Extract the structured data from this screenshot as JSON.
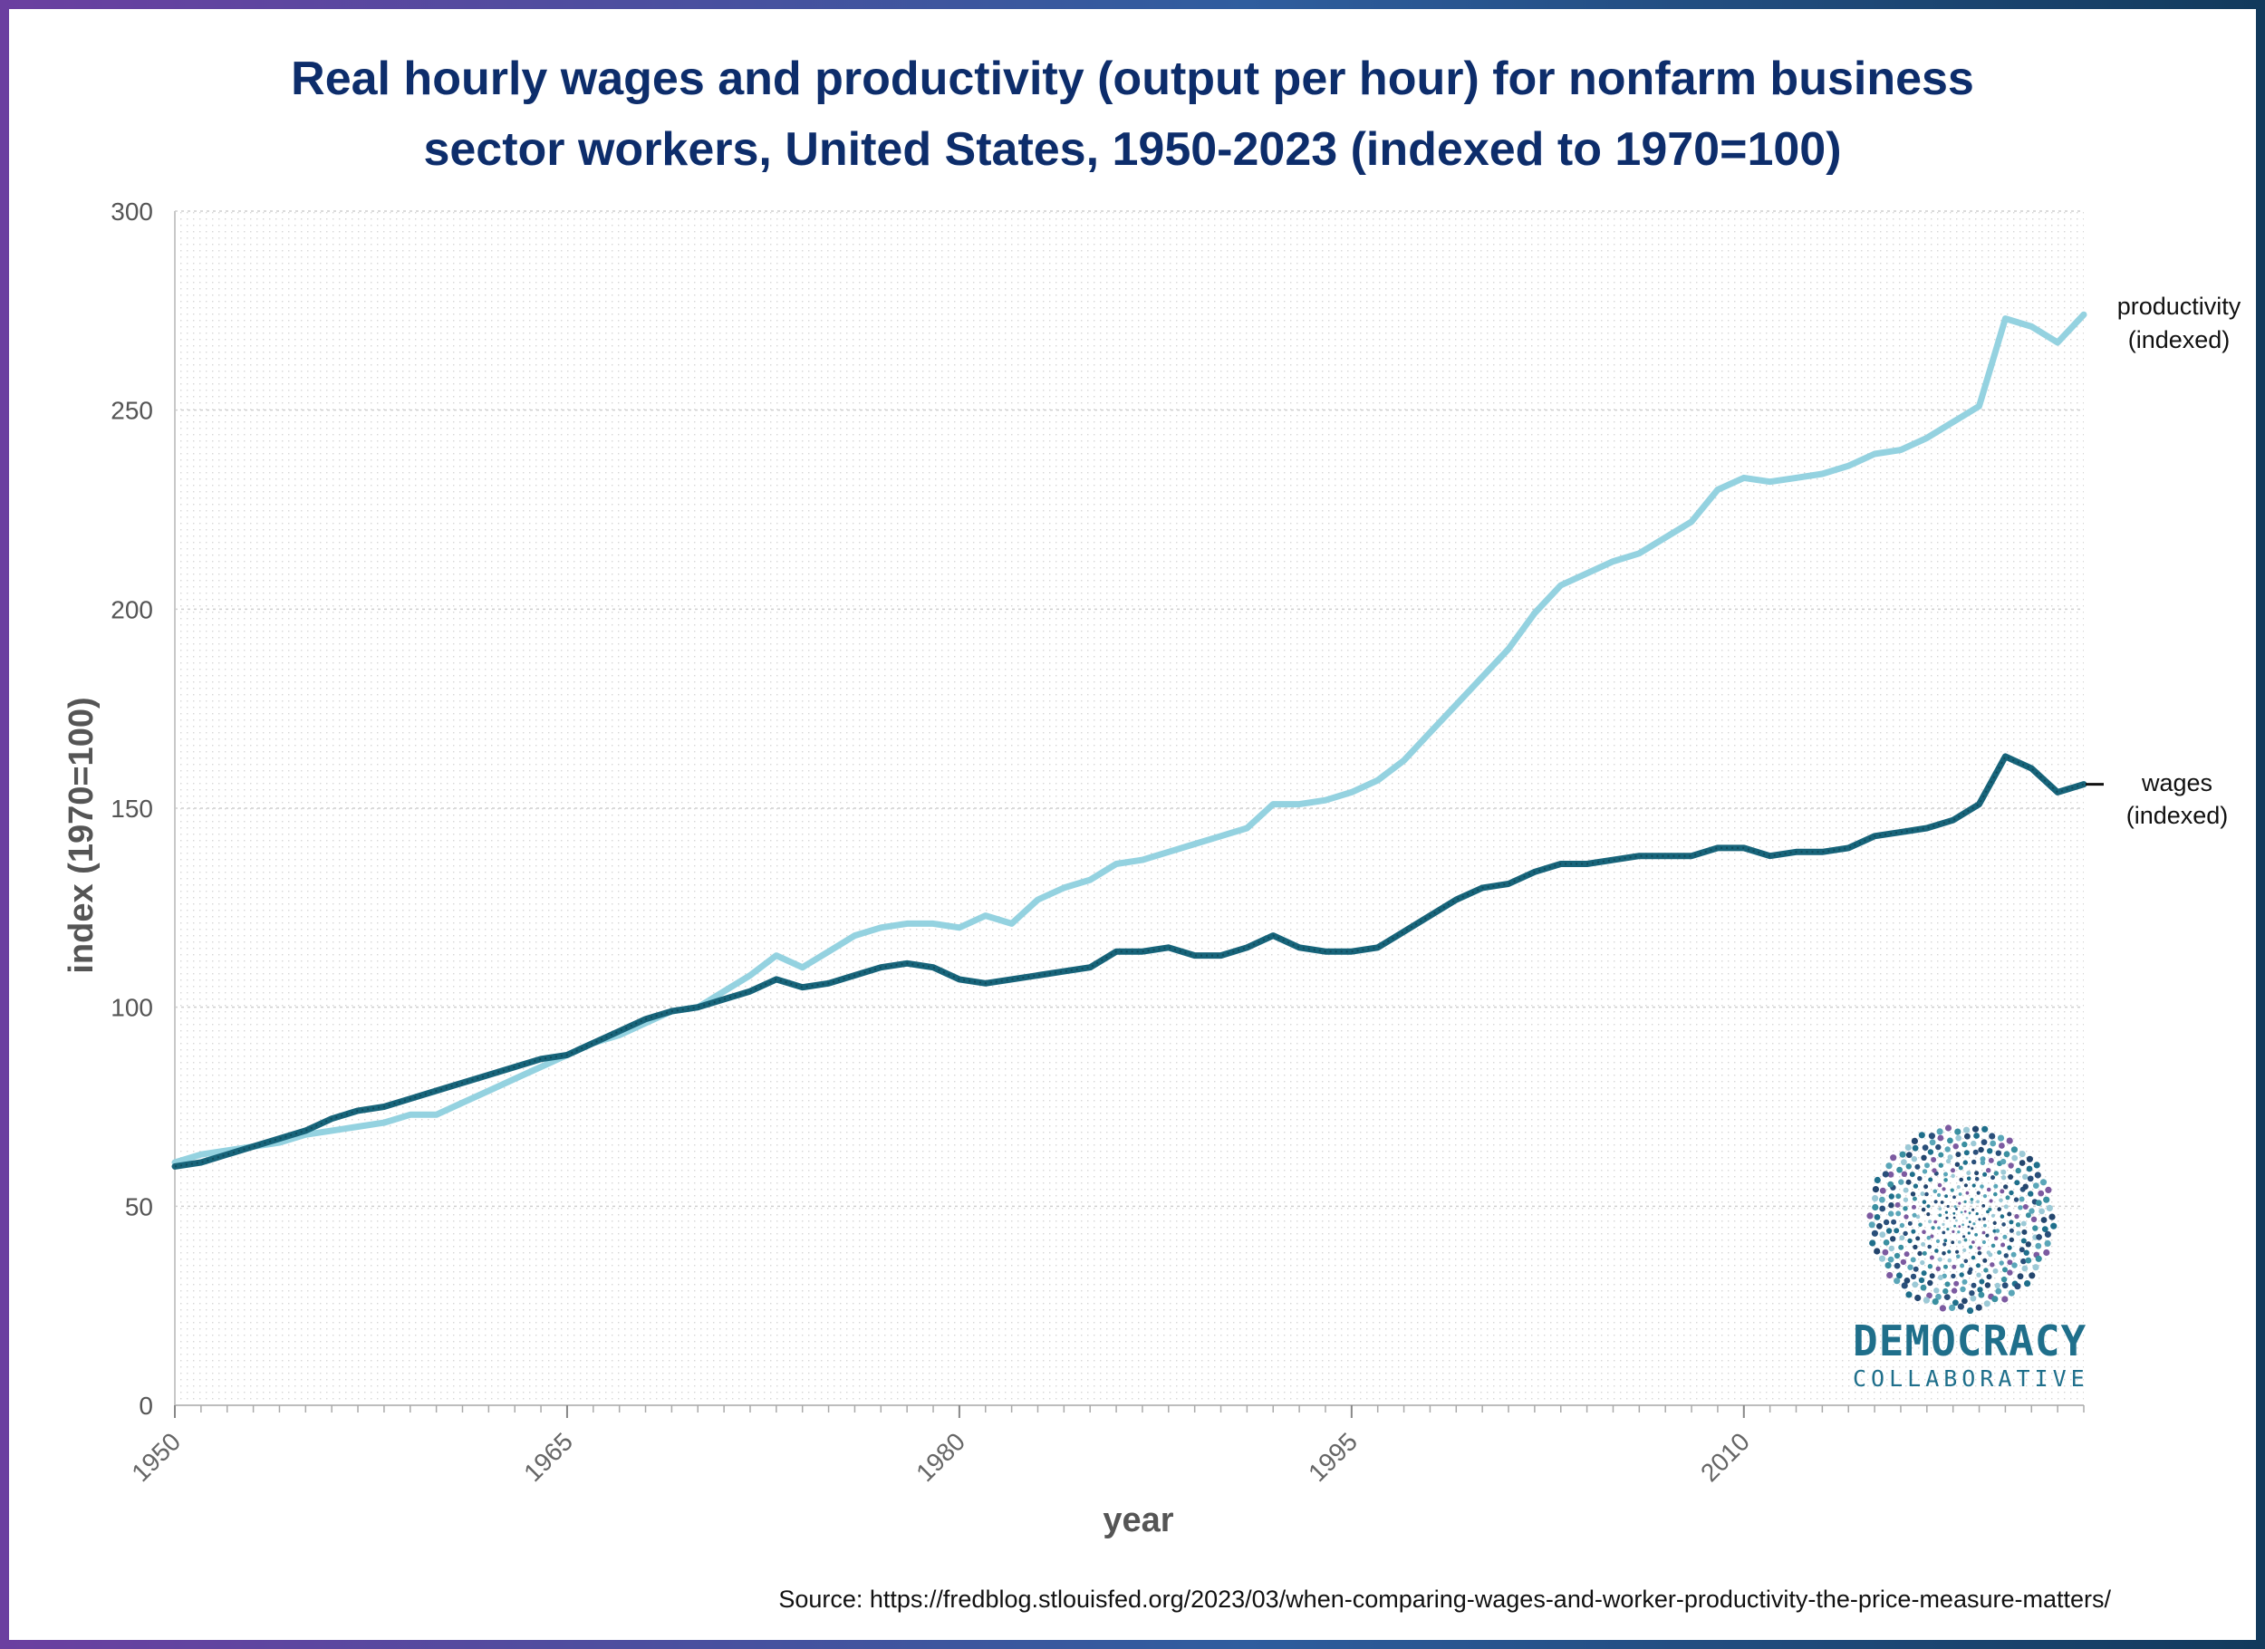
{
  "chart_data": {
    "type": "line",
    "title_lines": [
      "Real hourly wages and productivity (output per hour) for nonfarm business",
      "sector workers, United States, 1950-2023 (indexed to 1970=100)"
    ],
    "xlabel": "year",
    "ylabel": "index (1970=100)",
    "xlim": [
      1950,
      2023
    ],
    "ylim": [
      0,
      300
    ],
    "x_ticks": [
      "1950",
      "1965",
      "1980",
      "1995",
      "2010"
    ],
    "y_ticks": [
      "0",
      "50",
      "100",
      "150",
      "200",
      "250",
      "300"
    ],
    "grid": true,
    "series": [
      {
        "name": "productivity (indexed)",
        "label_lines": [
          "productivity",
          "(indexed)"
        ],
        "color": "#94d2e0",
        "points": [
          [
            1950,
            61
          ],
          [
            1951,
            63
          ],
          [
            1952,
            64
          ],
          [
            1953,
            65
          ],
          [
            1954,
            66
          ],
          [
            1955,
            68
          ],
          [
            1956,
            69
          ],
          [
            1957,
            70
          ],
          [
            1958,
            71
          ],
          [
            1959,
            73
          ],
          [
            1960,
            73
          ],
          [
            1961,
            76
          ],
          [
            1962,
            79
          ],
          [
            1963,
            82
          ],
          [
            1964,
            85
          ],
          [
            1965,
            88
          ],
          [
            1966,
            91
          ],
          [
            1967,
            93
          ],
          [
            1968,
            96
          ],
          [
            1969,
            99
          ],
          [
            1970,
            100
          ],
          [
            1971,
            104
          ],
          [
            1972,
            108
          ],
          [
            1973,
            113
          ],
          [
            1974,
            110
          ],
          [
            1975,
            114
          ],
          [
            1976,
            118
          ],
          [
            1977,
            120
          ],
          [
            1978,
            121
          ],
          [
            1979,
            121
          ],
          [
            1980,
            120
          ],
          [
            1981,
            123
          ],
          [
            1982,
            121
          ],
          [
            1983,
            127
          ],
          [
            1984,
            130
          ],
          [
            1985,
            132
          ],
          [
            1986,
            136
          ],
          [
            1987,
            137
          ],
          [
            1988,
            139
          ],
          [
            1989,
            141
          ],
          [
            1990,
            143
          ],
          [
            1991,
            145
          ],
          [
            1992,
            151
          ],
          [
            1993,
            151
          ],
          [
            1994,
            152
          ],
          [
            1995,
            154
          ],
          [
            1996,
            157
          ],
          [
            1997,
            162
          ],
          [
            1998,
            169
          ],
          [
            1999,
            176
          ],
          [
            2000,
            183
          ],
          [
            2001,
            190
          ],
          [
            2002,
            199
          ],
          [
            2003,
            206
          ],
          [
            2004,
            209
          ],
          [
            2005,
            212
          ],
          [
            2006,
            214
          ],
          [
            2007,
            218
          ],
          [
            2008,
            222
          ],
          [
            2009,
            230
          ],
          [
            2010,
            233
          ],
          [
            2011,
            232
          ],
          [
            2012,
            233
          ],
          [
            2013,
            234
          ],
          [
            2014,
            236
          ],
          [
            2015,
            239
          ],
          [
            2016,
            240
          ],
          [
            2017,
            243
          ],
          [
            2018,
            247
          ],
          [
            2019,
            251
          ],
          [
            2020,
            273
          ],
          [
            2021,
            271
          ],
          [
            2022,
            267
          ],
          [
            2023,
            274
          ]
        ]
      },
      {
        "name": "wages (indexed)",
        "label_lines": [
          "wages",
          "(indexed)"
        ],
        "color": "#17647a",
        "points": [
          [
            1950,
            60
          ],
          [
            1951,
            61
          ],
          [
            1952,
            63
          ],
          [
            1953,
            65
          ],
          [
            1954,
            67
          ],
          [
            1955,
            69
          ],
          [
            1956,
            72
          ],
          [
            1957,
            74
          ],
          [
            1958,
            75
          ],
          [
            1959,
            77
          ],
          [
            1960,
            79
          ],
          [
            1961,
            81
          ],
          [
            1962,
            83
          ],
          [
            1963,
            85
          ],
          [
            1964,
            87
          ],
          [
            1965,
            88
          ],
          [
            1966,
            91
          ],
          [
            1967,
            94
          ],
          [
            1968,
            97
          ],
          [
            1969,
            99
          ],
          [
            1970,
            100
          ],
          [
            1971,
            102
          ],
          [
            1972,
            104
          ],
          [
            1973,
            107
          ],
          [
            1974,
            105
          ],
          [
            1975,
            106
          ],
          [
            1976,
            108
          ],
          [
            1977,
            110
          ],
          [
            1978,
            111
          ],
          [
            1979,
            110
          ],
          [
            1980,
            107
          ],
          [
            1981,
            106
          ],
          [
            1982,
            107
          ],
          [
            1983,
            108
          ],
          [
            1984,
            109
          ],
          [
            1985,
            110
          ],
          [
            1986,
            114
          ],
          [
            1987,
            114
          ],
          [
            1988,
            115
          ],
          [
            1989,
            113
          ],
          [
            1990,
            113
          ],
          [
            1991,
            115
          ],
          [
            1992,
            118
          ],
          [
            1993,
            115
          ],
          [
            1994,
            114
          ],
          [
            1995,
            114
          ],
          [
            1996,
            115
          ],
          [
            1997,
            119
          ],
          [
            1998,
            123
          ],
          [
            1999,
            127
          ],
          [
            2000,
            130
          ],
          [
            2001,
            131
          ],
          [
            2002,
            134
          ],
          [
            2003,
            136
          ],
          [
            2004,
            136
          ],
          [
            2005,
            137
          ],
          [
            2006,
            138
          ],
          [
            2007,
            138
          ],
          [
            2008,
            138
          ],
          [
            2009,
            140
          ],
          [
            2010,
            140
          ],
          [
            2011,
            138
          ],
          [
            2012,
            139
          ],
          [
            2013,
            139
          ],
          [
            2014,
            140
          ],
          [
            2015,
            143
          ],
          [
            2016,
            144
          ],
          [
            2017,
            145
          ],
          [
            2018,
            147
          ],
          [
            2019,
            151
          ],
          [
            2020,
            163
          ],
          [
            2021,
            160
          ],
          [
            2022,
            154
          ],
          [
            2023,
            156
          ]
        ]
      }
    ]
  },
  "source": "Source: https://fredblog.stlouisfed.org/2023/03/when-comparing-wages-and-worker-productivity-the-price-measure-matters/",
  "logo": {
    "line1": "DEMOCRACY",
    "line2": "COLLABORATIVE"
  }
}
